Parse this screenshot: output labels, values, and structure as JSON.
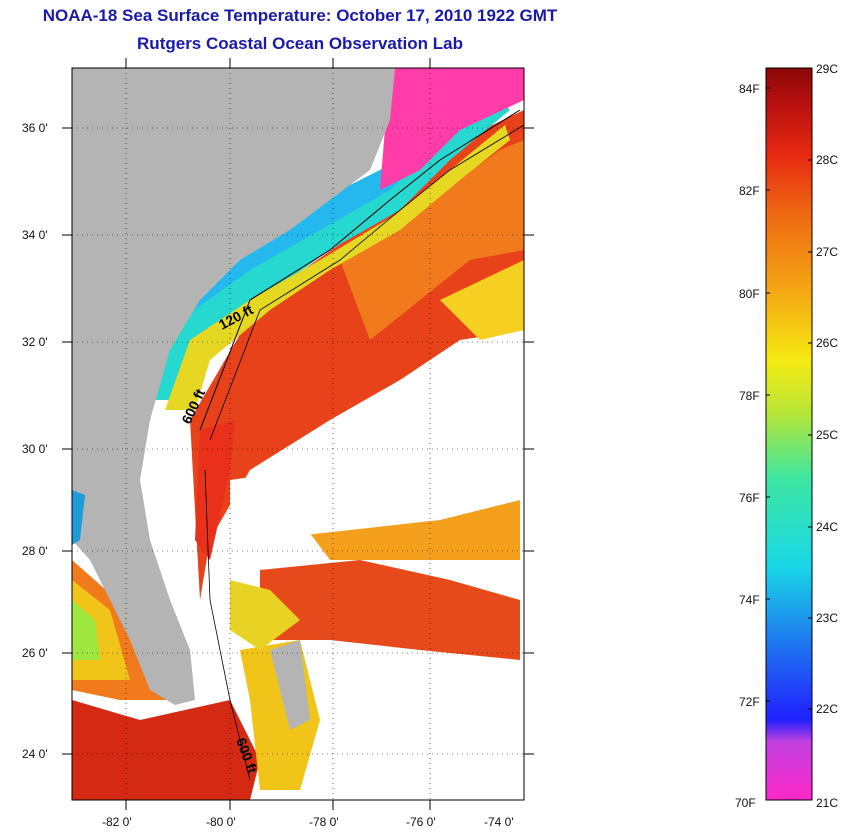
{
  "header": {
    "title": "NOAA-18 Sea Surface Temperature:  October 17, 2010 1922 GMT",
    "subtitle": "Rutgers Coastal Ocean Observation Lab"
  },
  "map": {
    "latitude_labels": [
      "36 0'",
      "34 0'",
      "32 0'",
      "30 0'",
      "28 0'",
      "26 0'",
      "24 0'"
    ],
    "longitude_labels": [
      "-82 0'",
      "-80 0'",
      "-78 0'",
      "-76 0'",
      "-74 0'"
    ],
    "contour_labels": [
      "120 ft",
      "600 ft",
      "600 ft"
    ],
    "colors": {
      "land": "#b4b4b4",
      "cloud": "#ffffff",
      "warm": "#e8301a",
      "orange": "#f08a1e",
      "yellow": "#f5e61e",
      "cyan": "#1ee6e6",
      "blue": "#1e5ae6",
      "magenta": "#ff3ca8"
    }
  },
  "colorbar": {
    "fahrenheit_labels": [
      "84F",
      "82F",
      "80F",
      "78F",
      "76F",
      "74F",
      "72F",
      "70F"
    ],
    "celsius_labels": [
      "29C",
      "28C",
      "27C",
      "26C",
      "25C",
      "24C",
      "23C",
      "22C",
      "21C"
    ],
    "range_c": [
      21,
      29
    ],
    "range_f": [
      70,
      84.2
    ]
  }
}
